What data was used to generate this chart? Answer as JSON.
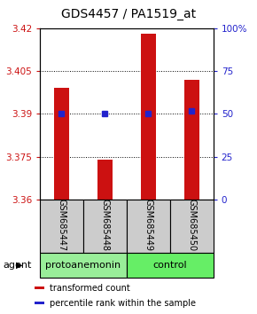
{
  "title": "GDS4457 / PA1519_at",
  "samples": [
    "GSM685447",
    "GSM685448",
    "GSM685449",
    "GSM685450"
  ],
  "bar_values": [
    3.399,
    3.374,
    3.418,
    3.402
  ],
  "bar_bottom": 3.36,
  "percentile_values": [
    3.39,
    3.39,
    3.39,
    3.391
  ],
  "ylim_left": [
    3.36,
    3.42
  ],
  "ylim_right": [
    0,
    100
  ],
  "yticks_left": [
    3.36,
    3.375,
    3.39,
    3.405,
    3.42
  ],
  "ytick_labels_left": [
    "3.36",
    "3.375",
    "3.39",
    "3.405",
    "3.42"
  ],
  "yticks_right": [
    0,
    25,
    50,
    75,
    100
  ],
  "ytick_labels_right": [
    "0",
    "25",
    "50",
    "75",
    "100%"
  ],
  "bar_color": "#cc1111",
  "marker_color": "#2222cc",
  "groups": [
    {
      "label": "protoanemonin",
      "samples": [
        0,
        1
      ],
      "color": "#99ee99"
    },
    {
      "label": "control",
      "samples": [
        2,
        3
      ],
      "color": "#66ee66"
    }
  ],
  "agent_label": "agent",
  "legend_items": [
    {
      "color": "#cc1111",
      "label": "transformed count"
    },
    {
      "color": "#2222cc",
      "label": "percentile rank within the sample"
    }
  ],
  "bar_width": 0.35,
  "title_fontsize": 10,
  "tick_fontsize": 7.5,
  "sample_label_fontsize": 7,
  "group_label_fontsize": 8
}
